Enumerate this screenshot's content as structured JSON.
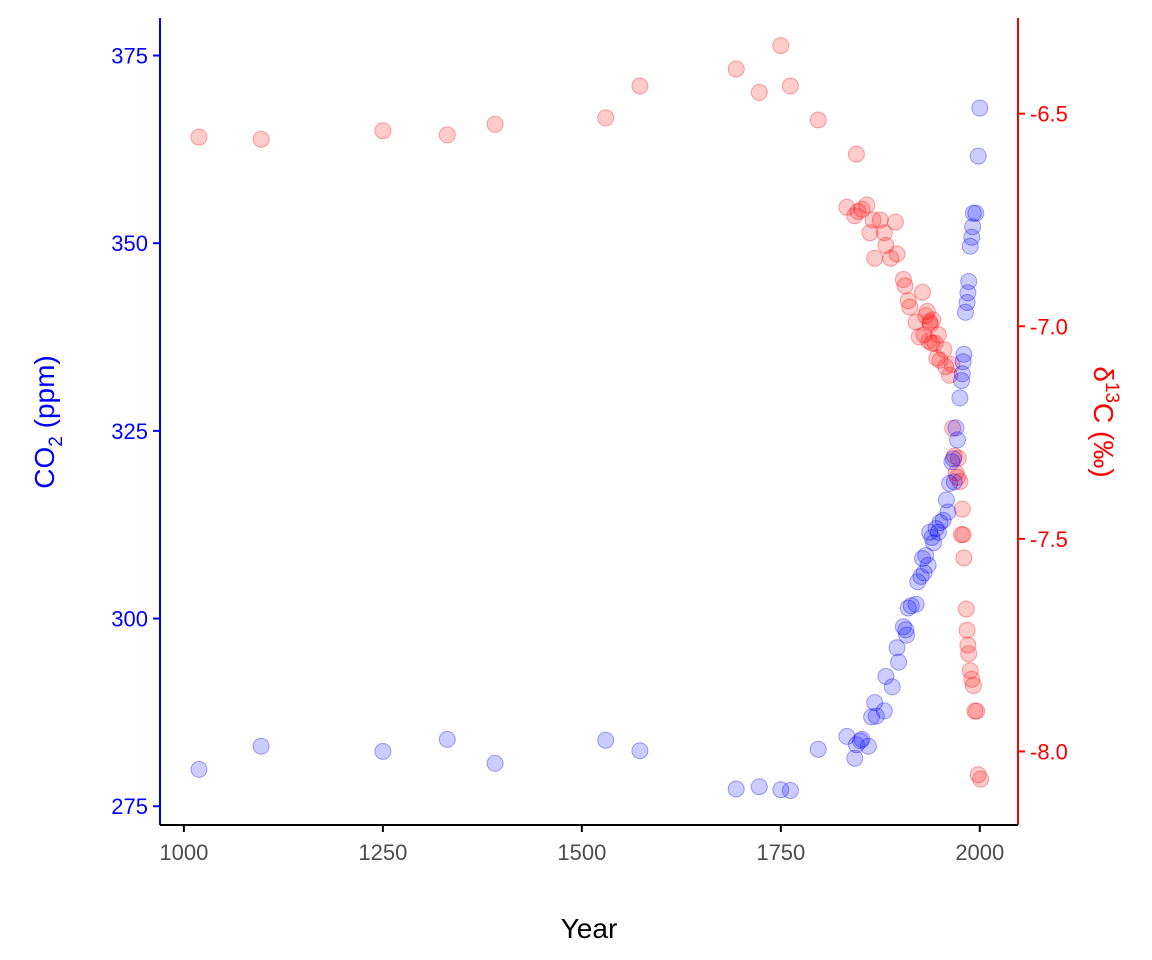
{
  "chart_data": {
    "type": "scatter",
    "xlabel": "Year",
    "ylabel_left": {
      "prefix": "CO",
      "sub": "2",
      "suffix": " (ppm)"
    },
    "ylabel_right": {
      "prefix": "δ",
      "sup": "13",
      "suffix": "C (‰)"
    },
    "xlim": [
      970,
      2048
    ],
    "ylim_left": [
      272.5,
      380
    ],
    "ylim_right": [
      -8.173,
      -6.275
    ],
    "x_ticks": [
      1000,
      1250,
      1500,
      1750,
      2000
    ],
    "x_tick_labels": [
      "1000",
      "1250",
      "1500",
      "1750",
      "2000"
    ],
    "y_left_ticks": [
      275,
      300,
      325,
      350,
      375
    ],
    "y_left_tick_labels": [
      "275",
      "300",
      "325",
      "350",
      "375"
    ],
    "y_right_ticks": [
      -8.0,
      -7.5,
      -7.0,
      -6.5
    ],
    "y_right_tick_labels": [
      "-8.0",
      "-7.5",
      "-7.0",
      "-6.5"
    ],
    "grid": false,
    "colors": {
      "left_axis": "#0000ff",
      "right_axis": "#ff0000",
      "x_axis": "#000000",
      "x_tick_text": "#4d4d4d"
    },
    "series": [
      {
        "axis": "left",
        "color": "#0000ff",
        "points": [
          [
            1019,
            279.9
          ],
          [
            1097,
            283.0
          ],
          [
            1250,
            282.3
          ],
          [
            1331,
            283.9
          ],
          [
            1391,
            280.7
          ],
          [
            1530,
            283.8
          ],
          [
            1573,
            282.4
          ],
          [
            1694,
            277.3
          ],
          [
            1723,
            277.6
          ],
          [
            1750,
            277.2
          ],
          [
            1762,
            277.1
          ],
          [
            1797,
            282.6
          ],
          [
            1833,
            284.3
          ],
          [
            1843,
            281.4
          ],
          [
            1845,
            283.2
          ],
          [
            1850,
            283.7
          ],
          [
            1852,
            283.9
          ],
          [
            1860,
            283.0
          ],
          [
            1864,
            286.9
          ],
          [
            1868,
            288.8
          ],
          [
            1870,
            287.0
          ],
          [
            1880,
            287.7
          ],
          [
            1882,
            292.3
          ],
          [
            1890,
            290.9
          ],
          [
            1896,
            296.1
          ],
          [
            1898,
            294.2
          ],
          [
            1904,
            298.9
          ],
          [
            1907,
            298.5
          ],
          [
            1908,
            297.8
          ],
          [
            1910,
            301.4
          ],
          [
            1914,
            301.7
          ],
          [
            1920,
            301.9
          ],
          [
            1922,
            304.9
          ],
          [
            1926,
            305.6
          ],
          [
            1928,
            308.0
          ],
          [
            1930,
            306.1
          ],
          [
            1932,
            308.4
          ],
          [
            1935,
            307.1
          ],
          [
            1937,
            311.5
          ],
          [
            1940,
            310.8
          ],
          [
            1942,
            310.1
          ],
          [
            1945,
            312.0
          ],
          [
            1948,
            311.5
          ],
          [
            1950,
            312.8
          ],
          [
            1954,
            313.1
          ],
          [
            1958,
            315.8
          ],
          [
            1960,
            314.2
          ],
          [
            1962,
            318.0
          ],
          [
            1965,
            320.9
          ],
          [
            1967,
            321.3
          ],
          [
            1968,
            318.2
          ],
          [
            1970,
            325.4
          ],
          [
            1972,
            323.8
          ],
          [
            1975,
            329.4
          ],
          [
            1977,
            331.7
          ],
          [
            1978,
            332.6
          ],
          [
            1979,
            334.2
          ],
          [
            1980,
            335.2
          ],
          [
            1982,
            340.8
          ],
          [
            1984,
            342.1
          ],
          [
            1985,
            343.4
          ],
          [
            1986,
            344.9
          ],
          [
            1988,
            349.6
          ],
          [
            1990,
            350.8
          ],
          [
            1991,
            352.2
          ],
          [
            1992,
            354.0
          ],
          [
            1995,
            354.0
          ],
          [
            1998,
            361.6
          ],
          [
            2000,
            368.0
          ]
        ]
      },
      {
        "axis": "right",
        "color": "#ff0000",
        "points": [
          [
            1019,
            -6.555
          ],
          [
            1097,
            -6.56
          ],
          [
            1250,
            -6.54
          ],
          [
            1331,
            -6.55
          ],
          [
            1391,
            -6.525
          ],
          [
            1530,
            -6.51
          ],
          [
            1573,
            -6.435
          ],
          [
            1694,
            -6.395
          ],
          [
            1723,
            -6.45
          ],
          [
            1750,
            -6.34
          ],
          [
            1762,
            -6.435
          ],
          [
            1797,
            -6.515
          ],
          [
            1833,
            -6.72
          ],
          [
            1843,
            -6.74
          ],
          [
            1845,
            -6.595
          ],
          [
            1847,
            -6.73
          ],
          [
            1852,
            -6.725
          ],
          [
            1858,
            -6.715
          ],
          [
            1862,
            -6.78
          ],
          [
            1866,
            -6.75
          ],
          [
            1868,
            -6.84
          ],
          [
            1875,
            -6.75
          ],
          [
            1880,
            -6.78
          ],
          [
            1882,
            -6.81
          ],
          [
            1888,
            -6.84
          ],
          [
            1894,
            -6.755
          ],
          [
            1896,
            -6.83
          ],
          [
            1904,
            -6.89
          ],
          [
            1906,
            -6.905
          ],
          [
            1910,
            -6.94
          ],
          [
            1912,
            -6.955
          ],
          [
            1920,
            -6.99
          ],
          [
            1924,
            -7.025
          ],
          [
            1928,
            -6.92
          ],
          [
            1930,
            -7.02
          ],
          [
            1932,
            -6.975
          ],
          [
            1934,
            -6.965
          ],
          [
            1936,
            -7.035
          ],
          [
            1937,
            -6.99
          ],
          [
            1938,
            -6.995
          ],
          [
            1940,
            -7.04
          ],
          [
            1941,
            -6.985
          ],
          [
            1944,
            -7.04
          ],
          [
            1946,
            -7.075
          ],
          [
            1948,
            -7.02
          ],
          [
            1950,
            -7.08
          ],
          [
            1955,
            -7.055
          ],
          [
            1957,
            -7.095
          ],
          [
            1962,
            -7.115
          ],
          [
            1965,
            -7.09
          ],
          [
            1966,
            -7.24
          ],
          [
            1968,
            -7.305
          ],
          [
            1970,
            -7.345
          ],
          [
            1972,
            -7.355
          ],
          [
            1973,
            -7.31
          ],
          [
            1975,
            -7.365
          ],
          [
            1977,
            -7.49
          ],
          [
            1978,
            -7.43
          ],
          [
            1979,
            -7.49
          ],
          [
            1980,
            -7.545
          ],
          [
            1983,
            -7.665
          ],
          [
            1984,
            -7.715
          ],
          [
            1985,
            -7.75
          ],
          [
            1986,
            -7.77
          ],
          [
            1988,
            -7.81
          ],
          [
            1990,
            -7.83
          ],
          [
            1992,
            -7.845
          ],
          [
            1994,
            -7.905
          ],
          [
            1996,
            -7.905
          ],
          [
            1998,
            -8.055
          ],
          [
            2001,
            -8.065
          ]
        ]
      }
    ]
  }
}
